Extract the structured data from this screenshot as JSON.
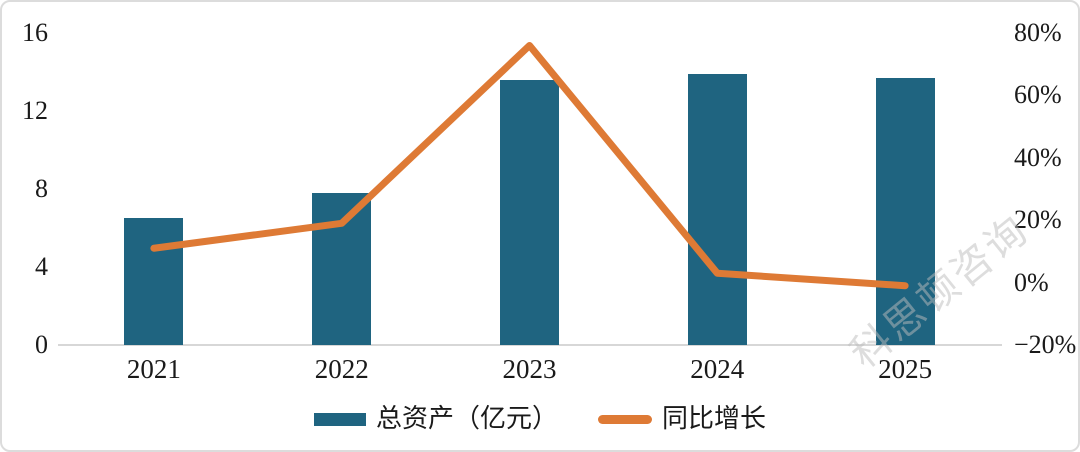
{
  "watermark": {
    "text": "科思顿咨询"
  },
  "style": {
    "bar_color": "#1F6480",
    "line_color": "#DE7A35",
    "axis_line_color": "#D7D7D7",
    "axis_text_color": "#1A1A1A",
    "watermark_color": "#BDBDBD"
  },
  "chart_data": {
    "type": "bar+line",
    "categories": [
      "2021",
      "2022",
      "2023",
      "2024",
      "2025"
    ],
    "series": [
      {
        "name": "总资产（亿元）",
        "type": "bar",
        "axis": "left",
        "values": [
          6.5,
          7.8,
          13.6,
          13.9,
          13.7
        ],
        "color": "#1F6480"
      },
      {
        "name": "同比增长",
        "type": "line",
        "axis": "right",
        "unit": "%",
        "values": [
          11,
          19,
          76,
          3,
          -1
        ],
        "color": "#DE7A35"
      }
    ],
    "left_axis": {
      "min": 0,
      "max": 16,
      "ticks": [
        {
          "label": "16",
          "value": 16
        },
        {
          "label": "12",
          "value": 12
        },
        {
          "label": "8",
          "value": 8
        },
        {
          "label": "4",
          "value": 4
        },
        {
          "label": "0",
          "value": 0
        }
      ]
    },
    "right_axis": {
      "min": -20,
      "max": 80,
      "ticks": [
        {
          "label": "80%",
          "value": 80
        },
        {
          "label": "60%",
          "value": 60
        },
        {
          "label": "40%",
          "value": 40
        },
        {
          "label": "20%",
          "value": 20
        },
        {
          "label": "0%",
          "value": 0
        },
        {
          "label": "−20%",
          "value": -20
        }
      ]
    },
    "grid": false,
    "legend_position": "bottom"
  }
}
